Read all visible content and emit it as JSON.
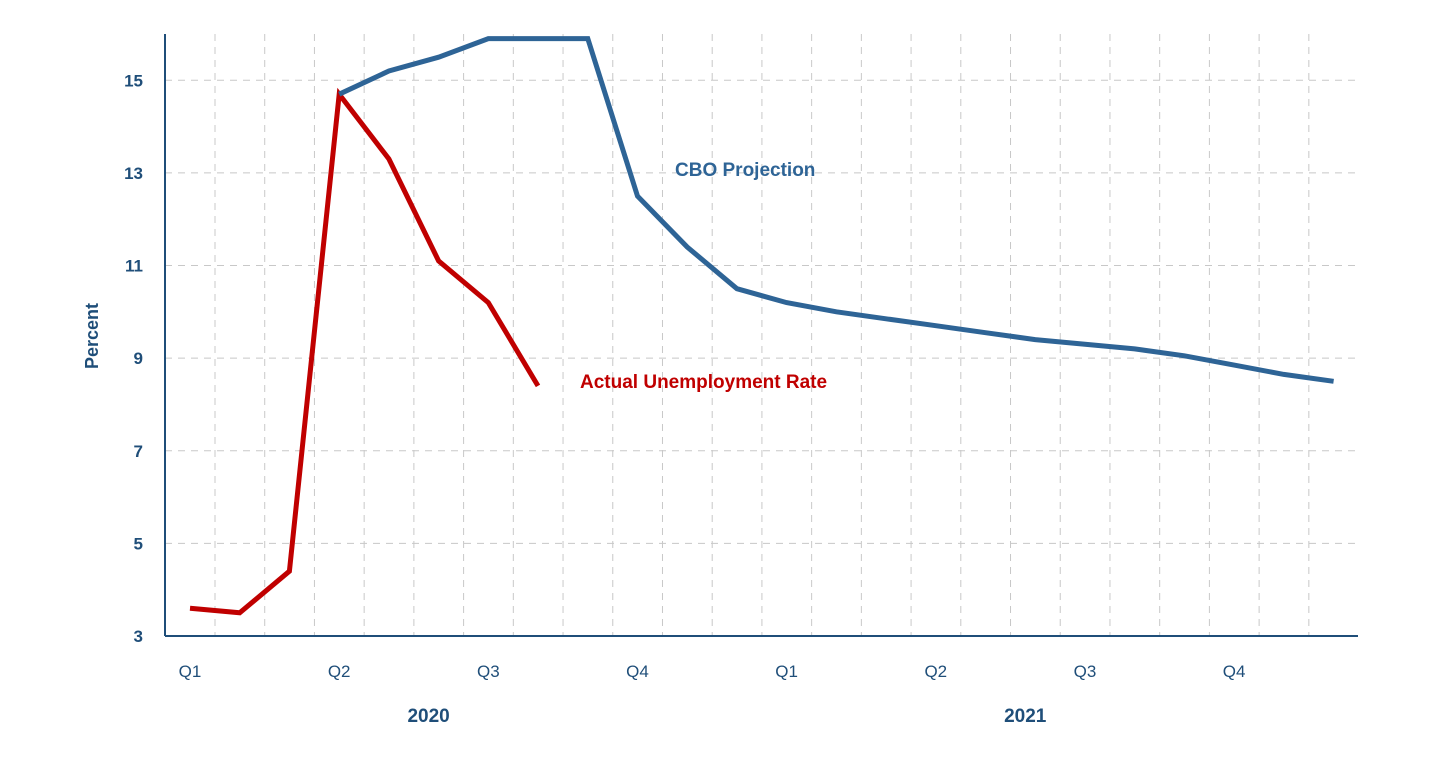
{
  "chart_data": {
    "type": "line",
    "title": "",
    "xlabel": "",
    "ylabel": "Percent",
    "ylim": [
      3,
      16
    ],
    "yticks": [
      3,
      5,
      7,
      9,
      11,
      13,
      15
    ],
    "xlim": [
      "2019-12",
      "2021-12"
    ],
    "grid": true,
    "x_tick_labels": [
      {
        "label": "Q1",
        "at": "2020-01"
      },
      {
        "label": "Q2",
        "at": "2020-04"
      },
      {
        "label": "Q3",
        "at": "2020-07"
      },
      {
        "label": "Q4",
        "at": "2020-10"
      },
      {
        "label": "Q1",
        "at": "2021-01"
      },
      {
        "label": "Q2",
        "at": "2021-04"
      },
      {
        "label": "Q3",
        "at": "2021-07"
      },
      {
        "label": "Q4",
        "at": "2021-10"
      }
    ],
    "year_labels": [
      {
        "label": "2020",
        "at": "2020-06"
      },
      {
        "label": "2021",
        "at": "2021-06"
      }
    ],
    "series": [
      {
        "name": "Actual Unemployment Rate",
        "color": "#c00000",
        "x": [
          "2020-01",
          "2020-02",
          "2020-03",
          "2020-04",
          "2020-05",
          "2020-06",
          "2020-07",
          "2020-08"
        ],
        "values": [
          3.6,
          3.5,
          4.4,
          14.7,
          13.3,
          11.1,
          10.2,
          8.4
        ]
      },
      {
        "name": "CBO Projection",
        "color": "#2e6496",
        "x": [
          "2020-04",
          "2020-05",
          "2020-06",
          "2020-07",
          "2020-08",
          "2020-09",
          "2020-10",
          "2020-11",
          "2020-12",
          "2021-01",
          "2021-02",
          "2021-03",
          "2021-04",
          "2021-05",
          "2021-06",
          "2021-07",
          "2021-08",
          "2021-09",
          "2021-10",
          "2021-11",
          "2021-12"
        ],
        "values": [
          14.7,
          15.2,
          15.5,
          15.9,
          15.9,
          15.9,
          12.5,
          11.4,
          10.5,
          10.2,
          10.0,
          9.85,
          9.7,
          9.55,
          9.4,
          9.3,
          9.2,
          9.05,
          8.85,
          8.65,
          8.5
        ]
      }
    ],
    "annotations": [
      {
        "text": "CBO Projection",
        "series": "CBO Projection"
      },
      {
        "text": "Actual Unemployment Rate",
        "series": "Actual Unemployment Rate"
      }
    ],
    "axis_color": "#1f4e79",
    "grid_color": "#c8c8c8"
  }
}
